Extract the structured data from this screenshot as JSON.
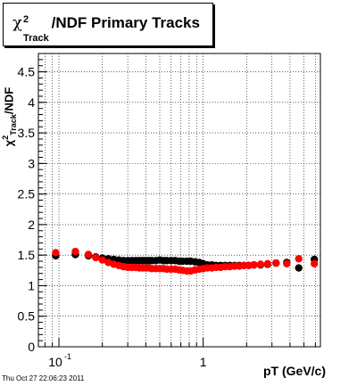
{
  "chart_data": {
    "type": "scatter",
    "title": "χ²_Track/NDF  Primary Tracks",
    "title_parts": {
      "chi": "χ",
      "sup": "2",
      "sub": "Track",
      "rest": "/NDF  Primary Tracks"
    },
    "ylabel": "χ²_Track/NDF",
    "ylabel_parts": {
      "chi": "χ",
      "sup": "2",
      "sub": "Track",
      "rest": "/NDF"
    },
    "xlabel": "pT (GeV/c)",
    "xscale": "log",
    "xlim": [
      0.072,
      6.5
    ],
    "ylim": [
      0,
      4.8
    ],
    "grid": true,
    "yticks": [
      0,
      0.5,
      1,
      1.5,
      2,
      2.5,
      3,
      3.5,
      4,
      4.5
    ],
    "ytick_labels": [
      "0",
      "0.5",
      "1",
      "1.5",
      "2",
      "2.5",
      "3",
      "3.5",
      "4",
      "4.5"
    ],
    "xticks_major": [
      0.1,
      1
    ],
    "xtick_labels": [
      "10",
      "1"
    ],
    "xtick_label_exp": "-1",
    "series": [
      {
        "color": "#000000",
        "x": [
          0.095,
          0.13,
          0.16,
          0.18,
          0.2,
          0.22,
          0.24,
          0.26,
          0.28,
          0.3,
          0.32,
          0.34,
          0.36,
          0.38,
          0.4,
          0.42,
          0.44,
          0.47,
          0.5,
          0.53,
          0.56,
          0.6,
          0.64,
          0.68,
          0.72,
          0.77,
          0.82,
          0.88,
          0.94,
          1.0,
          1.07,
          1.15,
          1.23,
          1.32,
          1.42,
          1.53,
          1.65,
          1.78,
          1.92,
          2.07,
          2.25,
          2.5,
          2.8,
          3.2,
          3.8,
          4.6,
          5.9
        ],
        "y": [
          1.49,
          1.51,
          1.49,
          1.47,
          1.45,
          1.44,
          1.43,
          1.42,
          1.41,
          1.41,
          1.41,
          1.41,
          1.41,
          1.41,
          1.41,
          1.41,
          1.41,
          1.41,
          1.42,
          1.41,
          1.41,
          1.41,
          1.41,
          1.4,
          1.4,
          1.4,
          1.4,
          1.39,
          1.38,
          1.36,
          1.34,
          1.34,
          1.33,
          1.33,
          1.33,
          1.33,
          1.33,
          1.33,
          1.33,
          1.33,
          1.34,
          1.34,
          1.35,
          1.37,
          1.38,
          1.29,
          1.43
        ]
      },
      {
        "color": "#ff0000",
        "x": [
          0.095,
          0.13,
          0.16,
          0.18,
          0.2,
          0.22,
          0.24,
          0.26,
          0.28,
          0.3,
          0.32,
          0.34,
          0.36,
          0.38,
          0.4,
          0.42,
          0.44,
          0.47,
          0.5,
          0.53,
          0.56,
          0.6,
          0.64,
          0.68,
          0.72,
          0.77,
          0.82,
          0.88,
          0.94,
          1.0,
          1.07,
          1.15,
          1.23,
          1.32,
          1.42,
          1.53,
          1.65,
          1.78,
          1.92,
          2.07,
          2.25,
          2.5,
          2.8,
          3.2,
          3.8,
          4.6,
          5.9
        ],
        "y": [
          1.54,
          1.56,
          1.51,
          1.46,
          1.42,
          1.38,
          1.35,
          1.33,
          1.31,
          1.3,
          1.3,
          1.3,
          1.29,
          1.29,
          1.29,
          1.29,
          1.28,
          1.28,
          1.28,
          1.28,
          1.27,
          1.27,
          1.27,
          1.26,
          1.25,
          1.24,
          1.24,
          1.26,
          1.27,
          1.28,
          1.29,
          1.29,
          1.3,
          1.3,
          1.31,
          1.31,
          1.32,
          1.32,
          1.33,
          1.33,
          1.34,
          1.35,
          1.36,
          1.37,
          1.36,
          1.44,
          1.36
        ]
      }
    ]
  },
  "footer": {
    "timestamp": "Thu Oct 27 22:06:23 2011"
  }
}
